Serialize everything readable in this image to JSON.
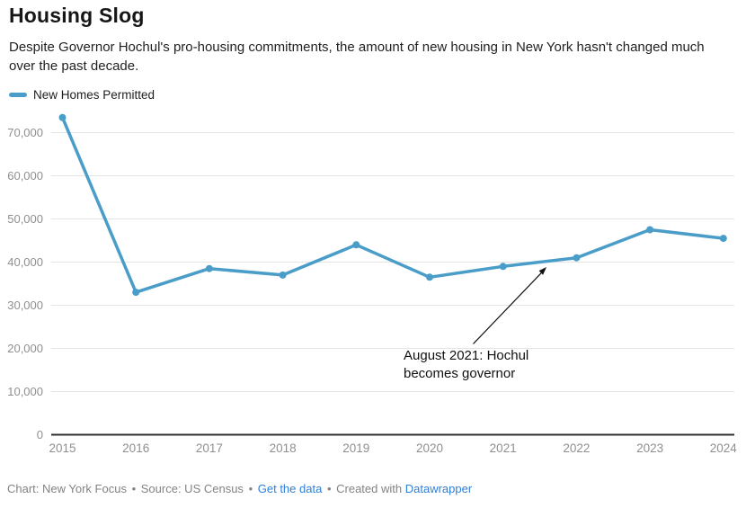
{
  "header": {
    "title": "Housing Slog",
    "subtitle": "Despite Governor Hochul's pro-housing commitments, the amount of new housing in New York hasn't changed much over the past decade."
  },
  "legend": {
    "label": "New Homes Permitted"
  },
  "colors": {
    "line": "#4a9dc8",
    "link": "#2e7fd6",
    "grid": "#e4e4e4",
    "axis": "#2f2f2f",
    "tick_text": "#8f8f8f",
    "annotation_text": "#111111",
    "footer_text": "#838383"
  },
  "chart_data": {
    "type": "line",
    "title": "Housing Slog",
    "categories": [
      "2015",
      "2016",
      "2017",
      "2018",
      "2019",
      "2020",
      "2021",
      "2022",
      "2023",
      "2024"
    ],
    "series": [
      {
        "name": "New Homes Permitted",
        "values": [
          73500,
          33000,
          38500,
          37000,
          44000,
          36500,
          39000,
          41000,
          47500,
          45500
        ]
      }
    ],
    "xlabel": "",
    "ylabel": "",
    "ylim": [
      0,
      70000
    ],
    "yticks": {
      "values": [
        0,
        10000,
        20000,
        30000,
        40000,
        50000,
        60000,
        70000
      ],
      "labels": [
        "0",
        "10,000",
        "20,000",
        "30,000",
        "40,000",
        "50,000",
        "60,000",
        "70,000"
      ]
    },
    "grid": "horizontal",
    "legend_position": "top-left",
    "annotation": {
      "text": "August 2021: Hochul becomes governor",
      "lines": [
        "August 2021: Hochul",
        "becomes governor"
      ],
      "arrow_target": "line between 2021 and 2022"
    }
  },
  "footer": {
    "credit": "Chart: New York Focus",
    "source": "Source: US Census",
    "separator": "•",
    "get_data_label": "Get the data",
    "created_with": "Created with",
    "tool_label": "Datawrapper"
  }
}
